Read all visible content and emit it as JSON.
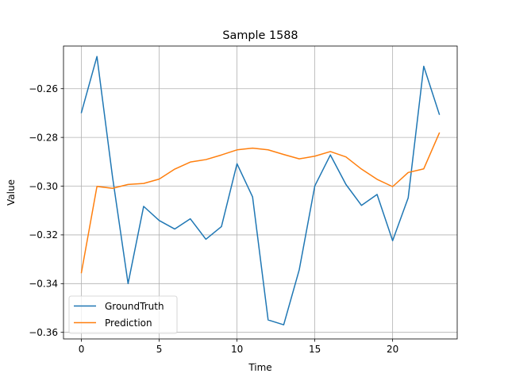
{
  "chart_data": {
    "type": "line",
    "title": "Sample 1588",
    "xlabel": "Time",
    "ylabel": "Value",
    "xlim": [
      -1.15,
      24.15
    ],
    "ylim": [
      -0.3627,
      -0.2425
    ],
    "xticks": [
      0,
      5,
      10,
      15,
      20
    ],
    "xtick_labels": [
      "0",
      "5",
      "10",
      "15",
      "20"
    ],
    "yticks": [
      -0.36,
      -0.34,
      -0.32,
      -0.3,
      -0.28,
      -0.26
    ],
    "ytick_labels": [
      "−0.36",
      "−0.34",
      "−0.32",
      "−0.30",
      "−0.28",
      "−0.26"
    ],
    "grid": true,
    "legend_position": "lower-left",
    "x": [
      0,
      1,
      2,
      3,
      4,
      5,
      6,
      7,
      8,
      9,
      10,
      11,
      12,
      13,
      14,
      15,
      16,
      17,
      18,
      19,
      20,
      21,
      22,
      23
    ],
    "series": [
      {
        "name": "GroundTruth",
        "color": "#1f77b4",
        "values": [
          -0.2698,
          -0.2468,
          -0.2962,
          -0.34,
          -0.3083,
          -0.3141,
          -0.3176,
          -0.3134,
          -0.3218,
          -0.3166,
          -0.2908,
          -0.3044,
          -0.3549,
          -0.3569,
          -0.3343,
          -0.2999,
          -0.2872,
          -0.2993,
          -0.3079,
          -0.3034,
          -0.3224,
          -0.3048,
          -0.2508,
          -0.2705
        ]
      },
      {
        "name": "Prediction",
        "color": "#ff7f0e",
        "values": [
          -0.3355,
          -0.3001,
          -0.3009,
          -0.2993,
          -0.2989,
          -0.2971,
          -0.293,
          -0.2901,
          -0.2891,
          -0.2872,
          -0.2851,
          -0.2844,
          -0.2851,
          -0.287,
          -0.2888,
          -0.2877,
          -0.2858,
          -0.288,
          -0.293,
          -0.2972,
          -0.3002,
          -0.2944,
          -0.2929,
          -0.2782
        ]
      }
    ]
  }
}
